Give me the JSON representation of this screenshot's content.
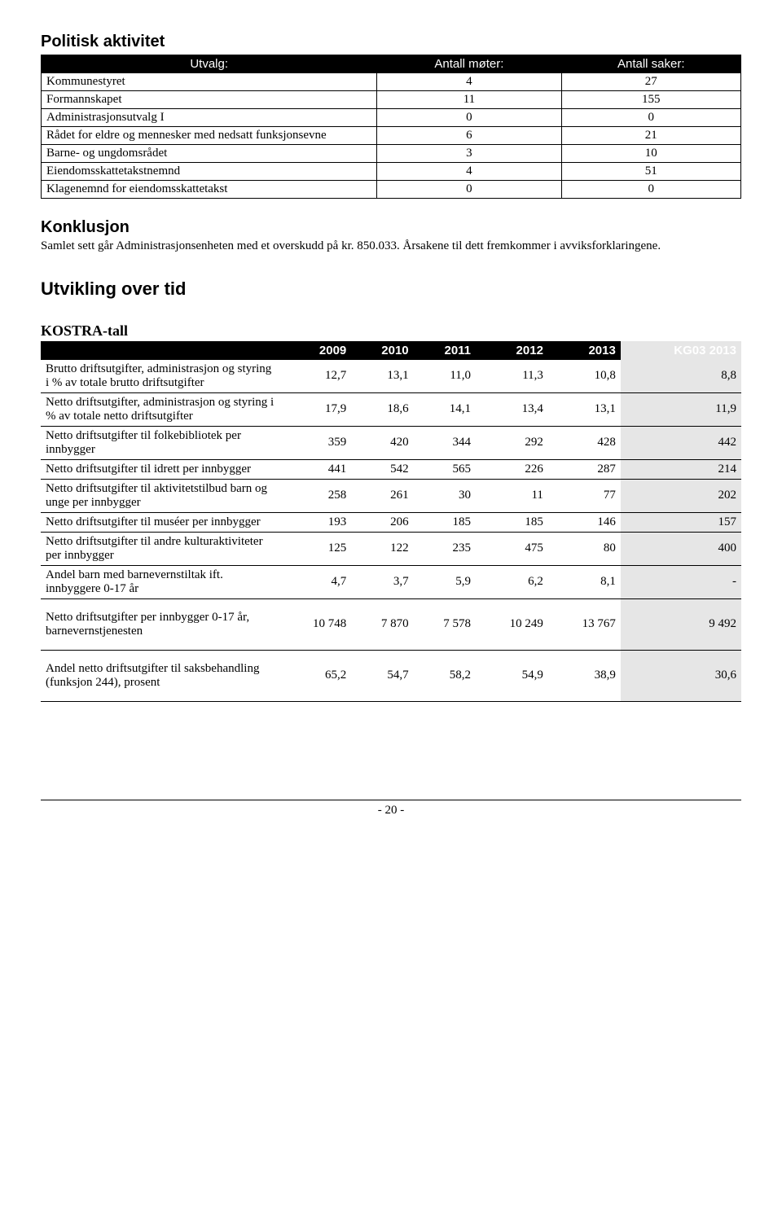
{
  "section1": {
    "title": "Politisk aktivitet",
    "headers": [
      "Utvalg:",
      "Antall møter:",
      "Antall saker:"
    ],
    "rows": [
      {
        "label": "Kommunestyret",
        "c1": "4",
        "c2": "27"
      },
      {
        "label": "Formannskapet",
        "c1": "11",
        "c2": "155"
      },
      {
        "label": "Administrasjonsutvalg I",
        "c1": "0",
        "c2": "0"
      },
      {
        "label": "Rådet for eldre og mennesker med nedsatt funksjonsevne",
        "c1": "6",
        "c2": "21"
      },
      {
        "label": "Barne- og ungdomsrådet",
        "c1": "3",
        "c2": "10"
      },
      {
        "label": "Eiendomsskattetakstnemnd",
        "c1": "4",
        "c2": "51"
      },
      {
        "label": "Klagenemnd for eiendomsskattetakst",
        "c1": "0",
        "c2": "0"
      }
    ]
  },
  "konklusjon": {
    "heading": "Konklusjon",
    "text": "Samlet sett går Administrasjonsenheten med et overskudd på kr. 850.033. Årsakene til dett fremkommer i avviksforklaringene."
  },
  "utvikling_heading": "Utvikling over tid",
  "kostra": {
    "heading": "KOSTRA-tall",
    "headers": [
      "",
      "2009",
      "2010",
      "2011",
      "2012",
      "2013",
      "KG03 2013"
    ],
    "rows": [
      {
        "label": "Brutto driftsutgifter, administrasjon og styring i % av totale brutto driftsutgifter",
        "v": [
          "12,7",
          "13,1",
          "11,0",
          "11,3",
          "10,8",
          "8,8"
        ]
      },
      {
        "label": "Netto driftsutgifter, administrasjon og styring i % av totale netto driftsutgifter",
        "v": [
          "17,9",
          "18,6",
          "14,1",
          "13,4",
          "13,1",
          "11,9"
        ]
      },
      {
        "label": "Netto driftsutgifter til folkebibliotek per innbygger",
        "v": [
          "359",
          "420",
          "344",
          "292",
          "428",
          "442"
        ]
      },
      {
        "label": "Netto driftsutgifter til idrett per innbygger",
        "v": [
          "441",
          "542",
          "565",
          "226",
          "287",
          "214"
        ]
      },
      {
        "label": "Netto driftsutgifter til aktivitetstilbud barn og unge per innbygger",
        "v": [
          "258",
          "261",
          "30",
          "11",
          "77",
          "202"
        ]
      },
      {
        "label": "Netto driftsutgifter til muséer per innbygger",
        "v": [
          "193",
          "206",
          "185",
          "185",
          "146",
          "157"
        ]
      },
      {
        "label": "Netto driftsutgifter til andre kulturaktiviteter per innbygger",
        "v": [
          "125",
          "122",
          "235",
          "475",
          "80",
          "400"
        ]
      },
      {
        "label": "Andel barn med barnevernstiltak ift. innbyggere 0-17 år",
        "v": [
          "4,7",
          "3,7",
          "5,9",
          "6,2",
          "8,1",
          "-"
        ]
      }
    ],
    "rows_spaced": [
      {
        "label": "Netto driftsutgifter per innbygger 0-17 år, barnevernstjenesten",
        "v": [
          "10 748",
          "7 870",
          "7 578",
          "10 249",
          "13 767",
          "9 492"
        ]
      },
      {
        "label": "Andel netto driftsutgifter til saksbehandling (funksjon 244), prosent",
        "v": [
          "65,2",
          "54,7",
          "58,2",
          "54,9",
          "38,9",
          "30,6"
        ]
      }
    ]
  },
  "page_number": "- 20 -"
}
